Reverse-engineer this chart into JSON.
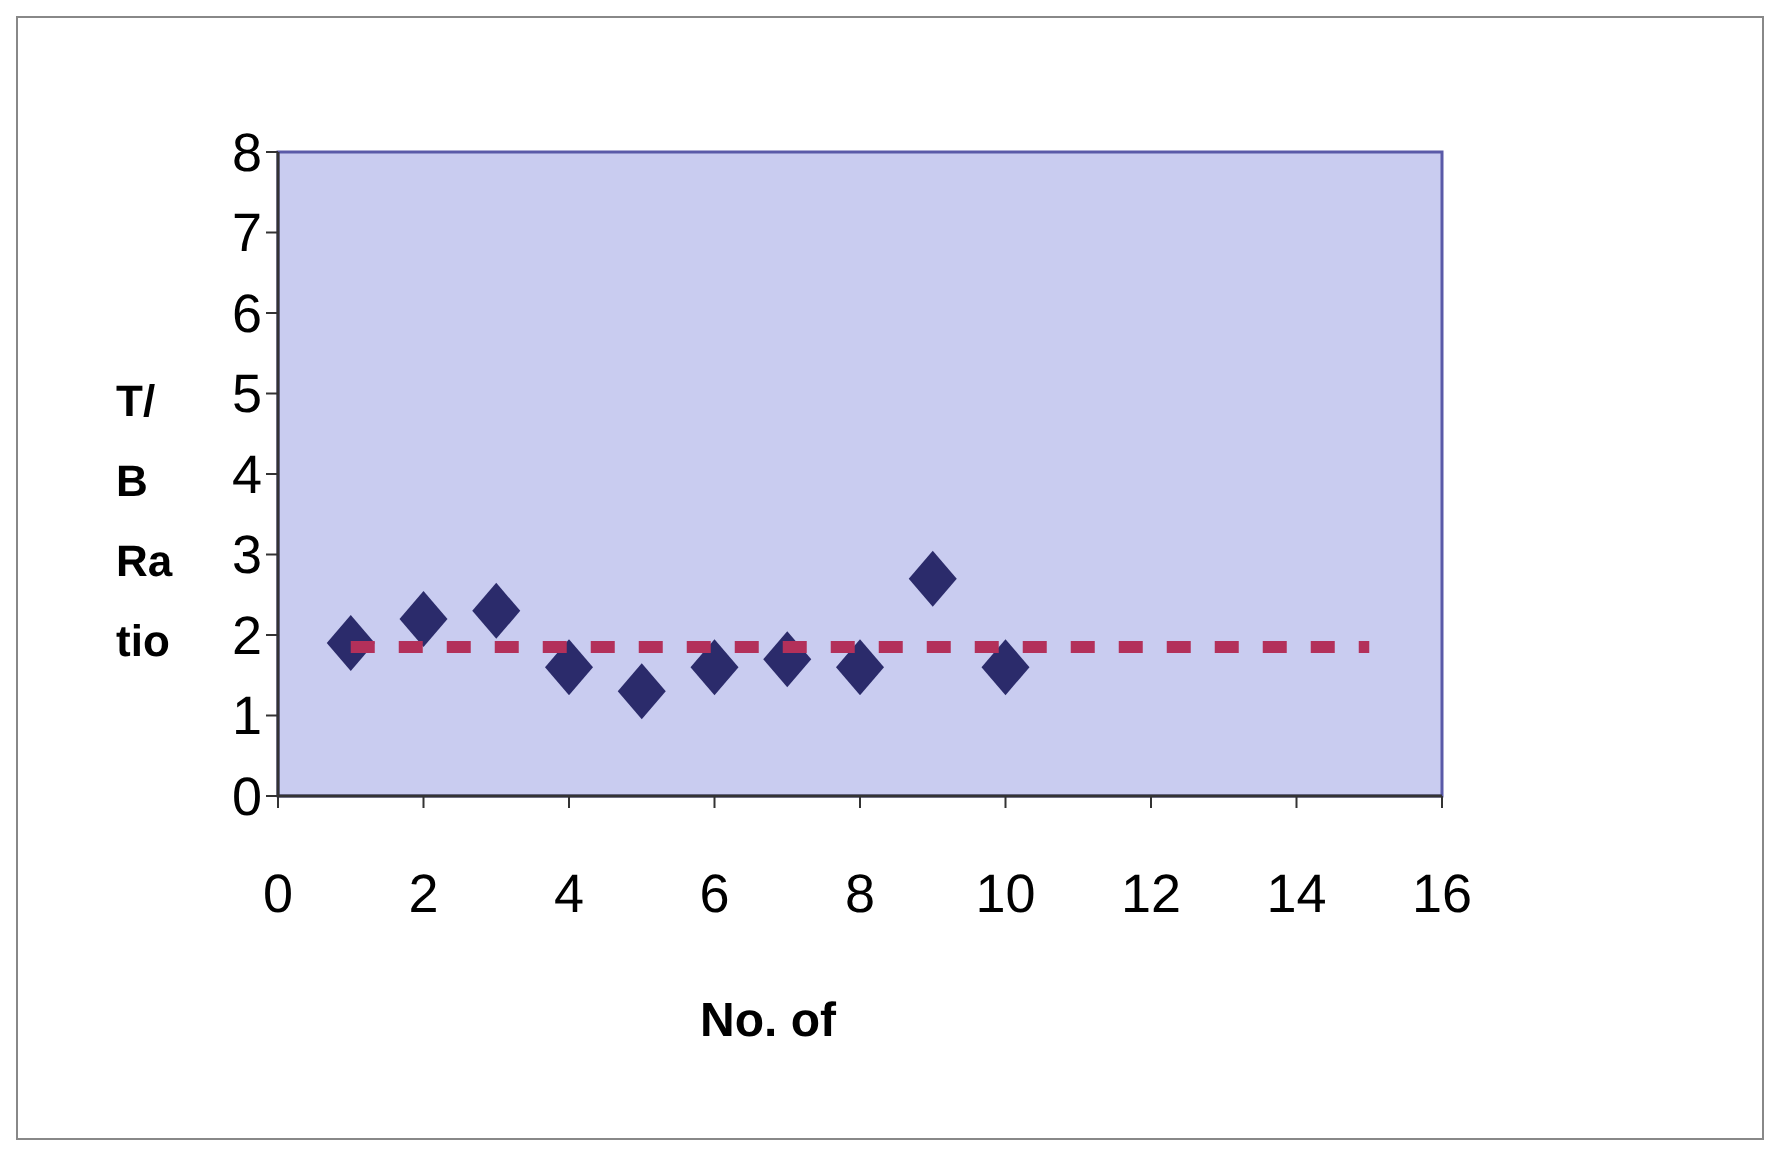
{
  "chart_data": {
    "type": "scatter",
    "xlabel": "No. of",
    "ylabel": "T/B Ratio",
    "xlim": [
      0,
      16
    ],
    "xticks": [
      0,
      2,
      4,
      6,
      8,
      10,
      12,
      14,
      16
    ],
    "ylim": [
      0,
      8
    ],
    "yticks": [
      0,
      1,
      2,
      3,
      4,
      5,
      6,
      7,
      8
    ],
    "grid": false,
    "series": [
      {
        "marker": "diamond",
        "color": "#2b2b6b",
        "x": [
          1,
          2,
          3,
          4,
          5,
          6,
          7,
          8,
          9,
          10
        ],
        "values": [
          1.9,
          2.2,
          2.3,
          1.6,
          1.3,
          1.6,
          1.7,
          1.6,
          2.7,
          1.6
        ]
      },
      {
        "type": "line",
        "marker": "none",
        "line_style": "dashed",
        "color": "#b3305a",
        "x": [
          1,
          15
        ],
        "values": [
          1.85,
          1.85
        ]
      }
    ]
  }
}
